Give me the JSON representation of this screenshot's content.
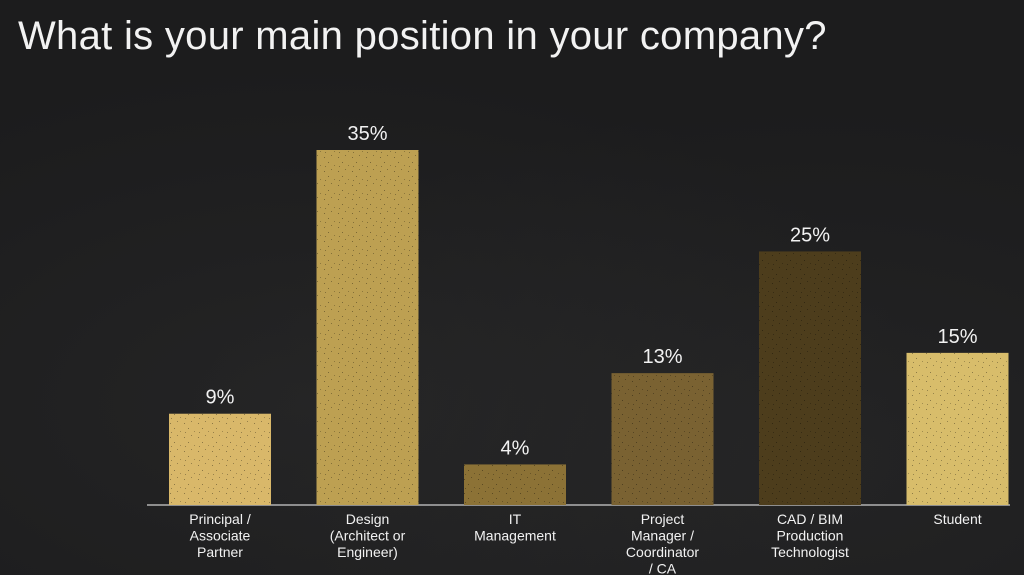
{
  "chart_data": {
    "type": "bar",
    "title": "What is your main position in your company?",
    "xlabel": "",
    "ylabel": "",
    "categories": [
      [
        "Principal /",
        "Associate",
        "Partner"
      ],
      [
        "Design",
        "(Architect or",
        "Engineer)"
      ],
      [
        "IT",
        "Management"
      ],
      [
        "Project",
        "Manager /",
        "Coordinator",
        "/ CA"
      ],
      [
        "CAD / BIM",
        "Production",
        "Technologist"
      ],
      [
        "Student"
      ]
    ],
    "values": [
      9,
      35,
      4,
      13,
      25,
      15
    ],
    "value_labels": [
      "9%",
      "35%",
      "4%",
      "13%",
      "25%",
      "15%"
    ],
    "ylim": [
      0,
      35
    ],
    "grid": false,
    "legend": "none",
    "colors": [
      "#d9b86a",
      "#bda052",
      "#8c7236",
      "#7a6232",
      "#4d3d1c",
      "#d8bd6b"
    ],
    "label_color": "#f2f2f2",
    "axis_color": "#cfcfcf"
  }
}
